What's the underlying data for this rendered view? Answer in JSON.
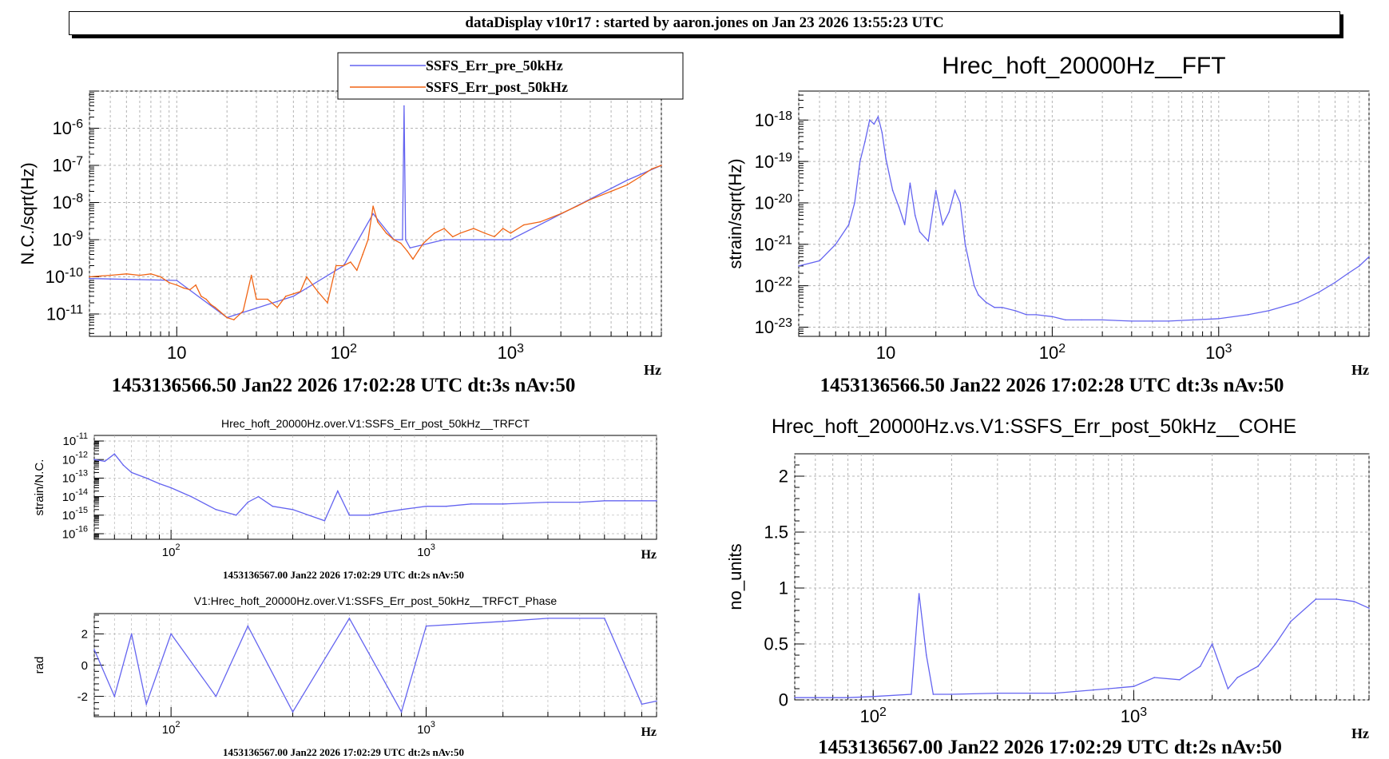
{
  "banner": {
    "title": "dataDisplay v10r17 : started by aaron.jones on Jan 23 2026 13:55:23 UTC"
  },
  "colors": {
    "pre": "#6464f0",
    "post": "#f06414",
    "grid": "#b4b4b4",
    "axis": "#000000"
  },
  "chart_data": [
    {
      "id": "ssfs",
      "type": "line",
      "title": "",
      "xlabel": "Hz",
      "ylabel": "N.C./sqrt(Hz)",
      "xscale": "log",
      "yscale": "log",
      "xlim": [
        3,
        8000
      ],
      "ylim": [
        2.5e-12,
        1e-05
      ],
      "xticks": [
        {
          "v": 10,
          "t": "10"
        },
        {
          "v": 100,
          "t": "10^2"
        },
        {
          "v": 1000,
          "t": "10^3"
        }
      ],
      "yticks": [
        {
          "v": 1e-11,
          "t": "10^-11"
        },
        {
          "v": 1e-10,
          "t": "10^-10"
        },
        {
          "v": 1e-09,
          "t": "10^-9"
        },
        {
          "v": 1e-08,
          "t": "10^-8"
        },
        {
          "v": 1e-07,
          "t": "10^-7"
        },
        {
          "v": 1e-06,
          "t": "10^-6"
        }
      ],
      "legend": {
        "placement": "top",
        "entries": [
          "SSFS_Err_pre_50kHz",
          "SSFS_Err_post_50kHz"
        ]
      },
      "footer": "1453136566.50 Jan22 2026 17:02:28 UTC dt:3s nAv:50",
      "series": [
        {
          "name": "SSFS_Err_pre_50kHz",
          "color": "#6464f0",
          "x": [
            3,
            10,
            20,
            50,
            100,
            150,
            200,
            225,
            230,
            235,
            250,
            400,
            1000,
            5000,
            8000
          ],
          "y": [
            9e-11,
            8e-11,
            8e-12,
            3e-11,
            2e-10,
            5e-09,
            1e-09,
            1e-09,
            4e-06,
            1e-09,
            6e-10,
            1e-09,
            1e-09,
            4e-08,
            1e-07
          ]
        },
        {
          "name": "SSFS_Err_post_50kHz",
          "color": "#f06414",
          "x": [
            3,
            4,
            5,
            6,
            7,
            8,
            9,
            10,
            11,
            12,
            13,
            14,
            15,
            16,
            17,
            18,
            20,
            22,
            25,
            28,
            30,
            35,
            40,
            45,
            50,
            55,
            60,
            70,
            80,
            90,
            100,
            110,
            120,
            130,
            140,
            150,
            160,
            180,
            200,
            220,
            240,
            260,
            280,
            300,
            350,
            400,
            450,
            500,
            600,
            700,
            800,
            900,
            1000,
            1200,
            1500,
            2000,
            2500,
            3000,
            4000,
            5000,
            6000,
            7000,
            8000
          ],
          "y": [
            1e-10,
            1.1e-10,
            1.2e-10,
            1.1e-10,
            1.2e-10,
            1e-10,
            7e-11,
            6e-11,
            5e-11,
            4.5e-11,
            6e-11,
            3e-11,
            2.5e-11,
            1.8e-11,
            1.5e-11,
            1.2e-11,
            8e-12,
            7e-12,
            1.2e-11,
            1.1e-10,
            2.5e-11,
            2.5e-11,
            1.5e-11,
            3e-11,
            3.5e-11,
            4e-11,
            1e-10,
            4e-11,
            2e-11,
            2e-10,
            2e-10,
            2.5e-10,
            1.5e-10,
            4e-10,
            1e-09,
            8e-09,
            3e-09,
            1.5e-09,
            1e-09,
            8e-10,
            5e-10,
            3e-10,
            5e-10,
            8e-10,
            1.5e-09,
            2e-09,
            1.2e-09,
            1.5e-09,
            2e-09,
            1.5e-09,
            1.2e-09,
            2e-09,
            1.5e-09,
            2.5e-09,
            3e-09,
            5e-09,
            8e-09,
            1.2e-08,
            2e-08,
            3e-08,
            5e-08,
            8e-08,
            1e-07
          ]
        }
      ]
    },
    {
      "id": "fft",
      "type": "line",
      "title": "Hrec_hoft_20000Hz__FFT",
      "xlabel": "Hz",
      "ylabel": "strain/sqrt(Hz)",
      "xscale": "log",
      "yscale": "log",
      "xlim": [
        3,
        8000
      ],
      "ylim": [
        6e-24,
        5e-18
      ],
      "xticks": [
        {
          "v": 10,
          "t": "10"
        },
        {
          "v": 100,
          "t": "10^2"
        },
        {
          "v": 1000,
          "t": "10^3"
        }
      ],
      "yticks": [
        {
          "v": 1e-23,
          "t": "10^-23"
        },
        {
          "v": 1e-22,
          "t": "10^-22"
        },
        {
          "v": 1e-21,
          "t": "10^-21"
        },
        {
          "v": 1e-20,
          "t": "10^-20"
        },
        {
          "v": 1e-19,
          "t": "10^-19"
        },
        {
          "v": 1e-18,
          "t": "10^-18"
        }
      ],
      "footer": "1453136566.50 Jan22 2026 17:02:28 UTC dt:3s nAv:50",
      "series": [
        {
          "name": "",
          "color": "#6464f0",
          "x": [
            3,
            4,
            5,
            6,
            6.5,
            7,
            7.5,
            8,
            8.5,
            9,
            9.5,
            10,
            11,
            12,
            13,
            14,
            15,
            16,
            18,
            20,
            22,
            24,
            26,
            28,
            30,
            32,
            34,
            36,
            40,
            45,
            50,
            60,
            70,
            80,
            100,
            120,
            150,
            200,
            300,
            400,
            500,
            700,
            1000,
            1500,
            2000,
            3000,
            4000,
            5000,
            6000,
            7000,
            8000
          ],
          "y": [
            3e-22,
            4e-22,
            1e-21,
            3e-21,
            1e-20,
            1e-19,
            3e-19,
            1e-18,
            8e-19,
            1.2e-18,
            5e-19,
            1.2e-19,
            2e-20,
            8e-21,
            3e-21,
            3e-20,
            5e-21,
            2e-21,
            1.2e-21,
            2e-20,
            3e-21,
            6e-21,
            2e-20,
            1e-20,
            1e-21,
            3e-22,
            1e-22,
            6e-23,
            4e-23,
            3e-23,
            3e-23,
            2.5e-23,
            2e-23,
            2e-23,
            1.8e-23,
            1.5e-23,
            1.5e-23,
            1.5e-23,
            1.4e-23,
            1.4e-23,
            1.4e-23,
            1.5e-23,
            1.6e-23,
            2e-23,
            2.5e-23,
            4e-23,
            7e-23,
            1.2e-22,
            2e-22,
            3e-22,
            5e-22
          ]
        }
      ]
    },
    {
      "id": "trfct",
      "type": "line",
      "title": "Hrec_hoft_20000Hz.over.V1:SSFS_Err_post_50kHz__TRFCT",
      "xlabel": "Hz",
      "ylabel": "strain/N.C.",
      "xscale": "log",
      "yscale": "log",
      "xlim": [
        50,
        8000
      ],
      "ylim": [
        5e-17,
        2e-11
      ],
      "xticks": [
        {
          "v": 100,
          "t": "10^2"
        },
        {
          "v": 1000,
          "t": "10^3"
        }
      ],
      "yticks": [
        {
          "v": 1e-16,
          "t": "10^-16"
        },
        {
          "v": 1e-15,
          "t": "10^-15"
        },
        {
          "v": 1e-14,
          "t": "10^-14"
        },
        {
          "v": 1e-13,
          "t": "10^-13"
        },
        {
          "v": 1e-12,
          "t": "10^-12"
        },
        {
          "v": 1e-11,
          "t": "10^-11"
        }
      ],
      "footer": "1453136567.00 Jan22 2026 17:02:29 UTC dt:2s nAv:50",
      "series": [
        {
          "name": "",
          "color": "#6464f0",
          "x": [
            50,
            55,
            60,
            65,
            70,
            80,
            90,
            100,
            120,
            150,
            180,
            200,
            220,
            250,
            300,
            400,
            450,
            500,
            600,
            700,
            800,
            1000,
            1200,
            1500,
            2000,
            3000,
            4000,
            5000,
            6000,
            7000,
            8000
          ],
          "y": [
            1e-12,
            8e-13,
            2e-12,
            5e-13,
            2e-13,
            1e-13,
            5e-14,
            3e-14,
            1e-14,
            2e-15,
            1e-15,
            5e-15,
            1e-14,
            3e-15,
            2e-15,
            5e-16,
            2e-14,
            1e-15,
            1e-15,
            1.5e-15,
            2e-15,
            3e-15,
            3e-15,
            4e-15,
            4e-15,
            5e-15,
            5e-15,
            6e-15,
            6e-15,
            6e-15,
            6e-15
          ]
        }
      ]
    },
    {
      "id": "phase",
      "type": "line",
      "title": "V1:Hrec_hoft_20000Hz.over.V1:SSFS_Err_post_50kHz__TRFCT_Phase",
      "xlabel": "Hz",
      "ylabel": "rad",
      "xscale": "log",
      "yscale": "linear",
      "xlim": [
        50,
        8000
      ],
      "ylim": [
        -3.3,
        3.3
      ],
      "xticks": [
        {
          "v": 100,
          "t": "10^2"
        },
        {
          "v": 1000,
          "t": "10^3"
        }
      ],
      "yticks": [
        {
          "v": -2,
          "t": "-2"
        },
        {
          "v": 0,
          "t": "0"
        },
        {
          "v": 2,
          "t": "2"
        }
      ],
      "footer": "1453136567.00 Jan22 2026 17:02:29 UTC dt:2s nAv:50",
      "series": [
        {
          "name": "",
          "color": "#6464f0",
          "x": [
            50,
            60,
            70,
            80,
            100,
            150,
            200,
            300,
            500,
            800,
            1000,
            2000,
            3000,
            5000,
            7000,
            8000
          ],
          "y": [
            1,
            -2,
            2,
            -2.5,
            2,
            -2,
            2.5,
            -3,
            3,
            -3,
            2.5,
            2.8,
            3,
            3,
            -2.5,
            -2.3
          ]
        }
      ]
    },
    {
      "id": "cohe",
      "type": "line",
      "title": "Hrec_hoft_20000Hz.vs.V1:SSFS_Err_post_50kHz__COHE",
      "xlabel": "Hz",
      "ylabel": "no_units",
      "xscale": "log",
      "yscale": "linear",
      "xlim": [
        50,
        8000
      ],
      "ylim": [
        0,
        2.2
      ],
      "xticks": [
        {
          "v": 100,
          "t": "10^2"
        },
        {
          "v": 1000,
          "t": "10^3"
        }
      ],
      "yticks": [
        {
          "v": 0,
          "t": "0"
        },
        {
          "v": 0.5,
          "t": "0.5"
        },
        {
          "v": 1,
          "t": "1"
        },
        {
          "v": 1.5,
          "t": "1.5"
        },
        {
          "v": 2,
          "t": "2"
        }
      ],
      "footer": "1453136567.00 Jan22 2026 17:02:29 UTC dt:2s nAv:50",
      "series": [
        {
          "name": "",
          "color": "#6464f0",
          "x": [
            50,
            80,
            100,
            140,
            150,
            160,
            170,
            200,
            300,
            500,
            800,
            1000,
            1200,
            1500,
            1800,
            2000,
            2300,
            2500,
            3000,
            3500,
            4000,
            5000,
            6000,
            7000,
            8000
          ],
          "y": [
            0.02,
            0.02,
            0.03,
            0.05,
            0.95,
            0.4,
            0.05,
            0.05,
            0.06,
            0.06,
            0.1,
            0.12,
            0.2,
            0.18,
            0.3,
            0.5,
            0.1,
            0.2,
            0.3,
            0.5,
            0.7,
            0.9,
            0.9,
            0.88,
            0.82
          ]
        }
      ]
    }
  ]
}
